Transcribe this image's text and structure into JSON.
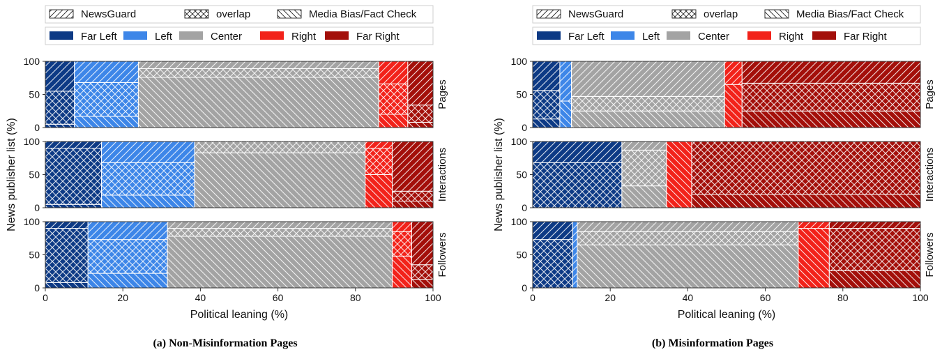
{
  "legend": {
    "sources": [
      {
        "label": "NewsGuard",
        "hatch": "newsguard"
      },
      {
        "label": "overlap",
        "hatch": "overlap"
      },
      {
        "label": "Media Bias/Fact Check",
        "hatch": "mbfc"
      }
    ],
    "leanings": [
      {
        "label": "Far Left",
        "color": "#0d3a85"
      },
      {
        "label": "Left",
        "color": "#3d86e8"
      },
      {
        "label": "Center",
        "color": "#a3a3a3"
      },
      {
        "label": "Right",
        "color": "#f2221a"
      },
      {
        "label": "Far Right",
        "color": "#a30f0a"
      }
    ]
  },
  "axes": {
    "xlabel": "Political leaning (%)",
    "ylabel": "News publisher list (%)",
    "xticks": [
      "0",
      "20",
      "40",
      "60",
      "80",
      "100"
    ],
    "yticks": [
      "0",
      "50",
      "100"
    ]
  },
  "chart_data": [
    {
      "type": "mosaic",
      "caption": "(a) Non-Misinformation Pages",
      "xlim": [
        0,
        100
      ],
      "ylim": [
        0,
        100
      ],
      "rows": [
        {
          "label": "Pages",
          "segments": [
            {
              "leaning": "Far Left",
              "width": 7.5,
              "mbfc": 5,
              "overlap": 50,
              "newsguard": 45
            },
            {
              "leaning": "Left",
              "width": 16.5,
              "mbfc": 17,
              "overlap": 51,
              "newsguard": 32
            },
            {
              "leaning": "Center",
              "width": 62,
              "mbfc": 76,
              "overlap": 13,
              "newsguard": 11
            },
            {
              "leaning": "Right",
              "width": 7.5,
              "mbfc": 20,
              "overlap": 46,
              "newsguard": 34
            },
            {
              "leaning": "Far Right",
              "width": 6.5,
              "mbfc": 8,
              "overlap": 26,
              "newsguard": 66
            }
          ]
        },
        {
          "label": "Interactions",
          "segments": [
            {
              "leaning": "Far Left",
              "width": 14.5,
              "mbfc": 5,
              "overlap": 85,
              "newsguard": 10
            },
            {
              "leaning": "Left",
              "width": 24,
              "mbfc": 19,
              "overlap": 49,
              "newsguard": 32
            },
            {
              "leaning": "Center",
              "width": 44,
              "mbfc": 83,
              "overlap": 17,
              "newsguard": 0
            },
            {
              "leaning": "Right",
              "width": 7,
              "mbfc": 50,
              "overlap": 40,
              "newsguard": 10
            },
            {
              "leaning": "Far Right",
              "width": 10.5,
              "mbfc": 10,
              "overlap": 15,
              "newsguard": 75
            }
          ]
        },
        {
          "label": "Followers",
          "segments": [
            {
              "leaning": "Far Left",
              "width": 11,
              "mbfc": 8,
              "overlap": 82,
              "newsguard": 10
            },
            {
              "leaning": "Left",
              "width": 20.5,
              "mbfc": 22,
              "overlap": 51,
              "newsguard": 27
            },
            {
              "leaning": "Center",
              "width": 58,
              "mbfc": 78,
              "overlap": 12,
              "newsguard": 10
            },
            {
              "leaning": "Right",
              "width": 5,
              "mbfc": 48,
              "overlap": 37,
              "newsguard": 15
            },
            {
              "leaning": "Far Right",
              "width": 5.5,
              "mbfc": 13,
              "overlap": 22,
              "newsguard": 65
            }
          ]
        }
      ]
    },
    {
      "type": "mosaic",
      "caption": "(b) Misinformation Pages",
      "xlim": [
        0,
        100
      ],
      "ylim": [
        0,
        100
      ],
      "rows": [
        {
          "label": "Pages",
          "segments": [
            {
              "leaning": "Far Left",
              "width": 7,
              "mbfc": 13,
              "overlap": 43,
              "newsguard": 44
            },
            {
              "leaning": "Left",
              "width": 3,
              "mbfc": 40,
              "overlap": 0,
              "newsguard": 60
            },
            {
              "leaning": "Center",
              "width": 39.5,
              "mbfc": 25,
              "overlap": 22,
              "newsguard": 53
            },
            {
              "leaning": "Right",
              "width": 4.5,
              "mbfc": 65,
              "overlap": 0,
              "newsguard": 35
            },
            {
              "leaning": "Far Right",
              "width": 46,
              "mbfc": 25,
              "overlap": 42,
              "newsguard": 33
            }
          ]
        },
        {
          "label": "Interactions",
          "segments": [
            {
              "leaning": "Far Left",
              "width": 23,
              "mbfc": 0,
              "overlap": 68,
              "newsguard": 32
            },
            {
              "leaning": "Left",
              "width": 0,
              "mbfc": 0,
              "overlap": 0,
              "newsguard": 0
            },
            {
              "leaning": "Center",
              "width": 11.5,
              "mbfc": 33,
              "overlap": 54,
              "newsguard": 13
            },
            {
              "leaning": "Right",
              "width": 6.5,
              "mbfc": 100,
              "overlap": 0,
              "newsguard": 0
            },
            {
              "leaning": "Far Right",
              "width": 59,
              "mbfc": 20,
              "overlap": 80,
              "newsguard": 0
            }
          ]
        },
        {
          "label": "Followers",
          "segments": [
            {
              "leaning": "Far Left",
              "width": 10.3,
              "mbfc": 0,
              "overlap": 73,
              "newsguard": 27
            },
            {
              "leaning": "Left",
              "width": 1.2,
              "mbfc": 0,
              "overlap": 0,
              "newsguard": 100
            },
            {
              "leaning": "Center",
              "width": 57,
              "mbfc": 65,
              "overlap": 20,
              "newsguard": 15
            },
            {
              "leaning": "Right",
              "width": 8,
              "mbfc": 90,
              "overlap": 0,
              "newsguard": 10
            },
            {
              "leaning": "Far Right",
              "width": 23.5,
              "mbfc": 26,
              "overlap": 64,
              "newsguard": 10
            }
          ]
        }
      ]
    }
  ]
}
